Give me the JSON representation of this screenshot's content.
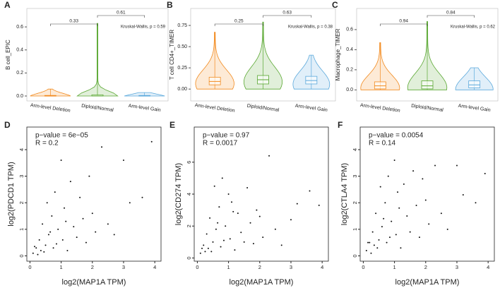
{
  "chart_data": [
    {
      "type": "violin",
      "label": "A",
      "ylabel": "B cell_EPIC",
      "test": "Kruskal-Wallis, p = 0.59",
      "ylim": [
        -0.043,
        0.76
      ],
      "yticks": [
        {
          "value": 0,
          "label": "0.0"
        },
        {
          "value": 0.2,
          "label": "0.2"
        },
        {
          "value": 0.4,
          "label": "0.4"
        },
        {
          "value": 0.6,
          "label": "0.6"
        }
      ],
      "comparisons": [
        {
          "from": 0,
          "to": 1,
          "label": "0.33"
        },
        {
          "from": 1,
          "to": 2,
          "label": "0.61"
        }
      ],
      "series": [
        {
          "name": "Arm-level Deletion",
          "color": "#f28a1e",
          "stats": {
            "low": 0,
            "q1": 0,
            "median": 0,
            "q3": 0.005,
            "high": 0.06
          }
        },
        {
          "name": "Diploid/Normal",
          "color": "#5aa832",
          "stats": {
            "low": 0,
            "q1": 0,
            "median": 0,
            "q3": 0.01,
            "high": 0.63
          }
        },
        {
          "name": "Arm-level Gain",
          "color": "#5ba9dc",
          "stats": {
            "low": 0,
            "q1": 0,
            "median": 0,
            "q3": 0.005,
            "high": 0.03
          }
        }
      ]
    },
    {
      "type": "violin",
      "label": "B",
      "ylabel": "T cell CD4+_TIMER",
      "test": "Kruskal-Wallis, p = 0.38",
      "ylim": [
        -0.14,
        0.95
      ],
      "yticks": [
        {
          "value": 0,
          "label": "0.00"
        },
        {
          "value": 0.25,
          "label": "0.25"
        },
        {
          "value": 0.5,
          "label": "0.50"
        },
        {
          "value": 0.75,
          "label": "0.75"
        }
      ],
      "comparisons": [
        {
          "from": 0,
          "to": 1,
          "label": "0.25"
        },
        {
          "from": 1,
          "to": 2,
          "label": "0.63"
        }
      ],
      "series": [
        {
          "name": "Arm-level Deletion",
          "color": "#f28a1e",
          "stats": {
            "low": 0,
            "q1": 0.05,
            "median": 0.09,
            "q3": 0.14,
            "high": 0.67
          }
        },
        {
          "name": "Diploid/Normal",
          "color": "#5aa832",
          "stats": {
            "low": 0,
            "q1": 0.06,
            "median": 0.11,
            "q3": 0.16,
            "high": 0.79
          }
        },
        {
          "name": "Arm-level Gain",
          "color": "#5ba9dc",
          "stats": {
            "low": 0,
            "q1": 0.06,
            "median": 0.1,
            "q3": 0.15,
            "high": 0.4
          }
        }
      ]
    },
    {
      "type": "violin",
      "label": "C",
      "ylabel": "Macrophage_TIMER",
      "test": "Kruskal-Wallis, p = 0.62",
      "ylim": [
        -0.11,
        0.81
      ],
      "yticks": [
        {
          "value": 0,
          "label": "0.0"
        },
        {
          "value": 0.2,
          "label": "0.2"
        },
        {
          "value": 0.4,
          "label": "0.4"
        },
        {
          "value": 0.6,
          "label": "0.6"
        }
      ],
      "comparisons": [
        {
          "from": 0,
          "to": 1,
          "label": "0.94"
        },
        {
          "from": 1,
          "to": 2,
          "label": "0.84"
        }
      ],
      "series": [
        {
          "name": "Arm-level Deletion",
          "color": "#f28a1e",
          "stats": {
            "low": 0,
            "q1": 0.01,
            "median": 0.04,
            "q3": 0.08,
            "high": 0.47
          }
        },
        {
          "name": "Diploid/Normal",
          "color": "#5aa832",
          "stats": {
            "low": 0,
            "q1": 0.01,
            "median": 0.04,
            "q3": 0.09,
            "high": 0.68
          }
        },
        {
          "name": "Arm-level Gain",
          "color": "#5ba9dc",
          "stats": {
            "low": 0,
            "q1": 0.02,
            "median": 0.05,
            "q3": 0.09,
            "high": 0.22
          }
        }
      ]
    },
    {
      "type": "scatter",
      "label": "D",
      "xlabel": "log2(MAP1A TPM)",
      "ylabel": "log2(PDCD1 TPM)",
      "annotations": [
        "p−value = 6e−05",
        "R = 0.2"
      ],
      "xlim": [
        -0.1,
        4.2
      ],
      "xticks": [
        0,
        1,
        2,
        3,
        4
      ],
      "ylim": [
        -0.2,
        4.85
      ],
      "yticks": [
        0,
        1,
        2,
        3,
        4
      ],
      "color": "#111111",
      "x": [
        0.1,
        0.2,
        0.25,
        0.3,
        0.35,
        0.4,
        0.5,
        0.55,
        0.6,
        0.7,
        0.75,
        0.8,
        0.9,
        1.0,
        1.05,
        1.1,
        1.2,
        1.3,
        1.4,
        1.5,
        1.6,
        1.7,
        1.8,
        1.9,
        2.0,
        2.1,
        2.3,
        2.5,
        2.7,
        3.0,
        3.2,
        3.6,
        3.9,
        0.45,
        0.65,
        0.85,
        1.15,
        0.15
      ],
      "values": [
        0.1,
        0.3,
        0.05,
        0.6,
        0.2,
        1.2,
        0.4,
        2.0,
        0.8,
        1.5,
        0.3,
        2.4,
        1.0,
        3.6,
        0.6,
        1.8,
        0.2,
        2.8,
        1.1,
        0.7,
        2.2,
        1.4,
        0.5,
        3.0,
        1.6,
        0.9,
        4.1,
        1.2,
        0.8,
        3.6,
        2.0,
        2.2,
        4.3,
        0.15,
        0.9,
        0.45,
        1.3,
        0.35
      ]
    },
    {
      "type": "scatter",
      "label": "E",
      "xlabel": "log2(MAP1A TPM)",
      "ylabel": "log2(CD274 TPM)",
      "annotations": [
        "p−value = 0.97",
        "R = 0.0017"
      ],
      "xlim": [
        -0.1,
        4.2
      ],
      "xticks": [
        0,
        1,
        2,
        3,
        4
      ],
      "ylim": [
        -0.2,
        8.2
      ],
      "yticks": [
        0,
        2,
        4,
        6
      ],
      "color": "#111111",
      "x": [
        0.1,
        0.2,
        0.25,
        0.3,
        0.35,
        0.4,
        0.5,
        0.55,
        0.6,
        0.7,
        0.75,
        0.8,
        0.9,
        1.0,
        1.05,
        1.1,
        1.2,
        1.3,
        1.4,
        1.5,
        1.6,
        1.7,
        1.8,
        1.9,
        2.0,
        2.1,
        2.3,
        2.5,
        2.7,
        3.0,
        3.2,
        3.6,
        3.9,
        0.45,
        0.65,
        0.85,
        1.15,
        0.15
      ],
      "values": [
        0.3,
        0.8,
        0.4,
        1.5,
        0.6,
        2.5,
        1.0,
        4.5,
        1.8,
        3.2,
        0.7,
        5.0,
        2.0,
        4.0,
        1.2,
        3.5,
        0.5,
        2.8,
        1.6,
        1.0,
        4.4,
        2.2,
        0.9,
        3.0,
        2.6,
        1.3,
        6.4,
        1.8,
        0.8,
        2.4,
        3.4,
        4.2,
        3.3,
        0.4,
        2.2,
        1.1,
        2.9,
        0.6
      ]
    },
    {
      "type": "scatter",
      "label": "F",
      "xlabel": "log2(MAP1A TPM)",
      "ylabel": "log2(CTLA4 TPM)",
      "annotations": [
        "p−value = 0.0054",
        "R = 0.14"
      ],
      "xlim": [
        -0.1,
        4.2
      ],
      "xticks": [
        0,
        1,
        2,
        3,
        4
      ],
      "ylim": [
        -0.2,
        4.85
      ],
      "yticks": [
        0,
        1,
        2,
        3,
        4
      ],
      "color": "#111111",
      "x": [
        0.1,
        0.2,
        0.25,
        0.3,
        0.35,
        0.4,
        0.5,
        0.55,
        0.6,
        0.7,
        0.75,
        0.8,
        0.9,
        1.0,
        1.05,
        1.1,
        1.2,
        1.3,
        1.4,
        1.5,
        1.6,
        1.7,
        1.8,
        1.9,
        2.0,
        2.1,
        2.3,
        2.5,
        2.7,
        3.0,
        3.2,
        3.6,
        3.9,
        0.45,
        0.65,
        0.85,
        1.15,
        0.15
      ],
      "values": [
        0.2,
        0.5,
        0.1,
        0.9,
        0.4,
        1.6,
        0.6,
        2.6,
        1.1,
        2.0,
        0.5,
        3.0,
        1.3,
        3.6,
        0.8,
        2.4,
        0.3,
        2.7,
        1.5,
        0.9,
        3.2,
        1.9,
        0.7,
        2.9,
        2.1,
        1.2,
        3.4,
        1.6,
        1.0,
        3.4,
        2.3,
        2.0,
        3.1,
        0.3,
        1.4,
        0.7,
        1.8,
        0.5
      ]
    }
  ]
}
